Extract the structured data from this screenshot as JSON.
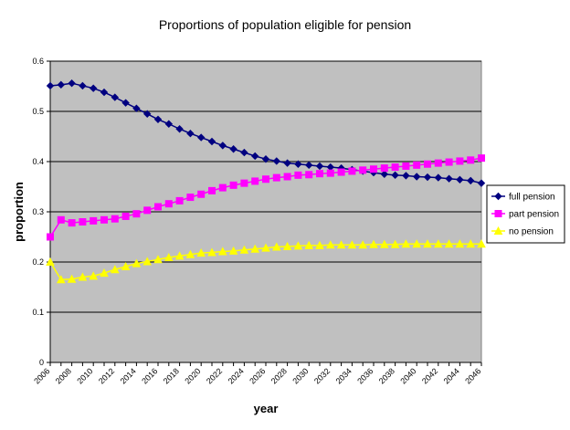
{
  "chart_data": {
    "type": "line",
    "title": "Proportions of  population eligible for pension",
    "xlabel": "year",
    "ylabel": "proportion",
    "ylim": [
      0,
      0.6
    ],
    "yticks": [
      "0",
      "0.1",
      "0.2",
      "0.3",
      "0.4",
      "0.5",
      "0.6"
    ],
    "xticks": [
      "2006",
      "2008",
      "2010",
      "2012",
      "2014",
      "2016",
      "2018",
      "2020",
      "2022",
      "2024",
      "2026",
      "2028",
      "2030",
      "2032",
      "2034",
      "2036",
      "2038",
      "2040",
      "2042",
      "2044",
      "2046"
    ],
    "x": [
      2006,
      2007,
      2008,
      2009,
      2010,
      2011,
      2012,
      2013,
      2014,
      2015,
      2016,
      2017,
      2018,
      2019,
      2020,
      2021,
      2022,
      2023,
      2024,
      2025,
      2026,
      2027,
      2028,
      2029,
      2030,
      2031,
      2032,
      2033,
      2034,
      2035,
      2036,
      2037,
      2038,
      2039,
      2040,
      2041,
      2042,
      2043,
      2044,
      2045,
      2046
    ],
    "grid": true,
    "legend_position": "right",
    "plot_background": "#c0c0c0",
    "series": [
      {
        "name": "full pension",
        "color": "#000080",
        "marker": "diamond",
        "values": [
          0.551,
          0.553,
          0.556,
          0.551,
          0.546,
          0.538,
          0.528,
          0.517,
          0.506,
          0.495,
          0.484,
          0.475,
          0.465,
          0.456,
          0.448,
          0.44,
          0.432,
          0.425,
          0.418,
          0.411,
          0.405,
          0.401,
          0.397,
          0.395,
          0.393,
          0.391,
          0.389,
          0.387,
          0.384,
          0.381,
          0.378,
          0.375,
          0.373,
          0.372,
          0.37,
          0.369,
          0.368,
          0.366,
          0.364,
          0.362,
          0.357
        ]
      },
      {
        "name": "part pension",
        "color": "#ff00ff",
        "marker": "square",
        "values": [
          0.25,
          0.284,
          0.278,
          0.28,
          0.282,
          0.284,
          0.286,
          0.291,
          0.296,
          0.303,
          0.31,
          0.316,
          0.322,
          0.329,
          0.335,
          0.342,
          0.348,
          0.353,
          0.357,
          0.361,
          0.365,
          0.368,
          0.37,
          0.373,
          0.374,
          0.376,
          0.377,
          0.379,
          0.381,
          0.383,
          0.385,
          0.387,
          0.389,
          0.391,
          0.393,
          0.395,
          0.397,
          0.399,
          0.401,
          0.403,
          0.407
        ]
      },
      {
        "name": "no pension",
        "color": "#ffff00",
        "marker": "triangle",
        "values": [
          0.2,
          0.165,
          0.166,
          0.17,
          0.172,
          0.178,
          0.185,
          0.191,
          0.197,
          0.201,
          0.205,
          0.209,
          0.212,
          0.215,
          0.218,
          0.219,
          0.221,
          0.222,
          0.224,
          0.226,
          0.228,
          0.23,
          0.231,
          0.232,
          0.233,
          0.233,
          0.234,
          0.234,
          0.234,
          0.234,
          0.235,
          0.235,
          0.235,
          0.236,
          0.236,
          0.236,
          0.236,
          0.236,
          0.236,
          0.236,
          0.236
        ]
      }
    ]
  }
}
